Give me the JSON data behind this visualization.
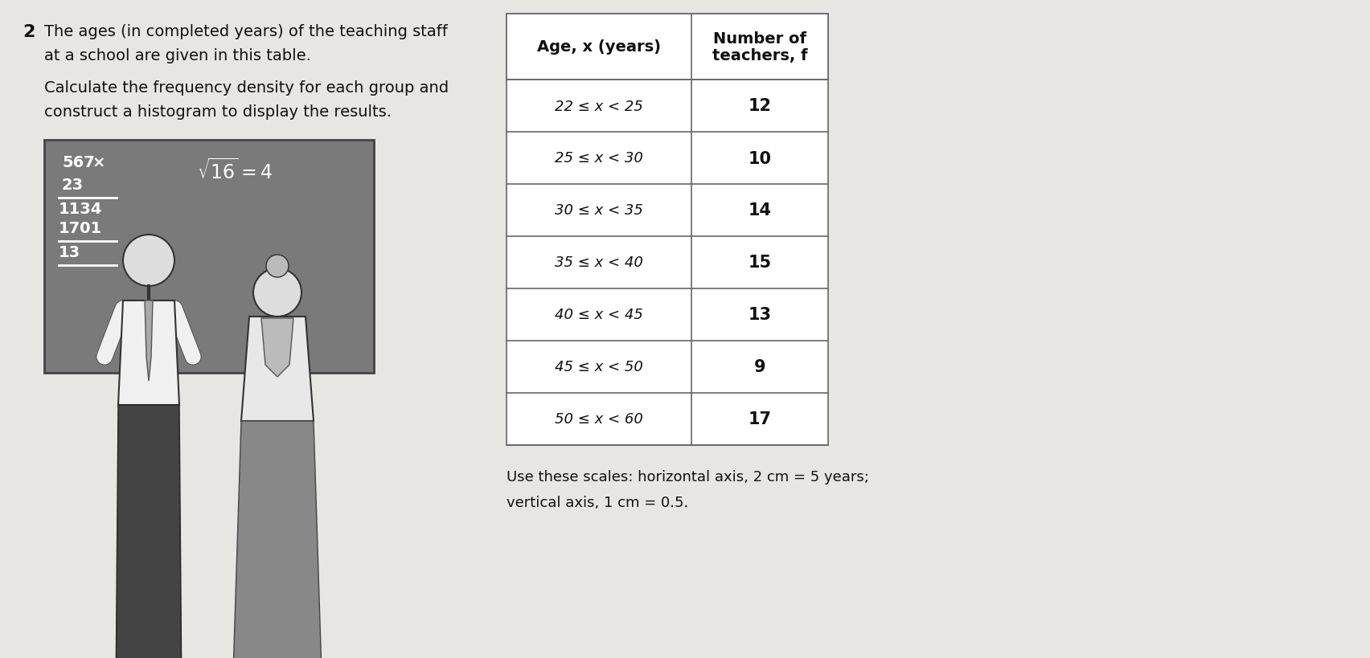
{
  "problem_number": "2",
  "problem_text_line1": "The ages (in completed years) of the teaching staff",
  "problem_text_line2": "at a school are given in this table.",
  "problem_text_line3": "Calculate the frequency density for each group and",
  "problem_text_line4": "construct a histogram to display the results.",
  "scale_text_line1": "Use these scales: horizontal axis, 2 cm = 5 years;",
  "scale_text_line2": "vertical axis, 1 cm = 0.5.",
  "table_header_col1": "Age, x (years)",
  "table_header_col2": "Number of\nteachers, f",
  "table_rows": [
    [
      "22 ≤ x < 25",
      "12"
    ],
    [
      "25 ≤ x < 30",
      "10"
    ],
    [
      "30 ≤ x < 35",
      "14"
    ],
    [
      "35 ≤ x < 40",
      "15"
    ],
    [
      "40 ≤ x < 45",
      "13"
    ],
    [
      "45 ≤ x < 50",
      "9"
    ],
    [
      "50 ≤ x < 60",
      "17"
    ]
  ],
  "bg_color": "#e8e6e3",
  "text_color": "#111111",
  "table_line_color": "#666666",
  "board_color": "#7a7a7a",
  "board_text_color": "#ffffff",
  "font_size_num": 16,
  "font_size_problem": 14,
  "font_size_table": 13,
  "font_size_scale": 13,
  "font_size_board": 12
}
